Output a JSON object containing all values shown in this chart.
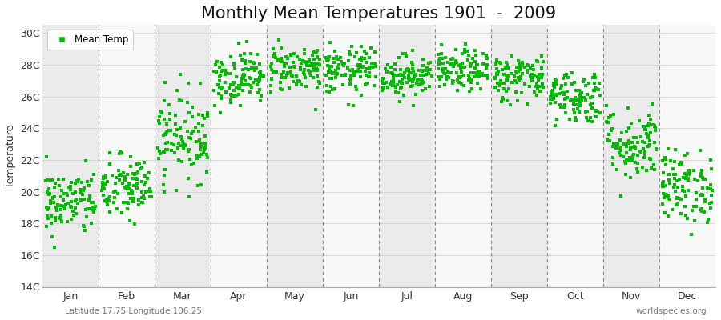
{
  "title": "Monthly Mean Temperatures 1901  -  2009",
  "ylabel": "Temperature",
  "legend_label": "Mean Temp",
  "dot_color": "#00bb00",
  "bg_light": "#ebebeb",
  "bg_white": "#f8f8f8",
  "figure_bg": "#ffffff",
  "dashed_color": "#888888",
  "ylim": [
    14,
    30.5
  ],
  "ytick_labels": [
    "14C",
    "16C",
    "18C",
    "20C",
    "22C",
    "24C",
    "26C",
    "28C",
    "30C"
  ],
  "ytick_values": [
    14,
    16,
    18,
    20,
    22,
    24,
    26,
    28,
    30
  ],
  "months": [
    "Jan",
    "Feb",
    "Mar",
    "Apr",
    "May",
    "Jun",
    "Jul",
    "Aug",
    "Sep",
    "Oct",
    "Nov",
    "Dec"
  ],
  "num_years": 109,
  "title_fontsize": 15,
  "axis_label_fontsize": 9,
  "tick_fontsize": 9,
  "watermark": "worldspecies.org",
  "lat_lon_text": "Latitude 17.75 Longitude 106.25",
  "monthly_mean_temps": [
    19.3,
    20.2,
    23.5,
    27.2,
    27.8,
    27.6,
    27.3,
    27.6,
    27.2,
    26.0,
    23.0,
    20.3
  ],
  "monthly_std": [
    1.05,
    1.05,
    1.4,
    0.85,
    0.75,
    0.75,
    0.65,
    0.65,
    0.75,
    0.85,
    1.15,
    1.15
  ]
}
